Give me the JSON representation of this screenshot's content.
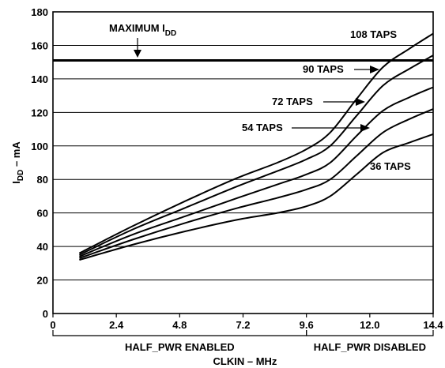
{
  "chart_data": {
    "type": "line",
    "xlabel": "CLKIN – MHz",
    "ylabel_main": "I",
    "ylabel_sub": "DD",
    "ylabel_tail": " – mA",
    "xlim": [
      0,
      14.4
    ],
    "ylim": [
      0,
      180
    ],
    "x_ticks": [
      "0",
      "2.4",
      "4.8",
      "7.2",
      "9.6",
      "12.0",
      "14.4"
    ],
    "x_tick_values": [
      0,
      2.4,
      4.8,
      7.2,
      9.6,
      12.0,
      14.4
    ],
    "y_ticks": [
      "0",
      "20",
      "40",
      "60",
      "80",
      "100",
      "120",
      "140",
      "160",
      "180"
    ],
    "y_tick_values": [
      0,
      20,
      40,
      60,
      80,
      100,
      120,
      140,
      160,
      180
    ],
    "grid": "horizontal",
    "max_line": {
      "value": 151,
      "label_main": "MAXIMUM I",
      "label_sub": "DD"
    },
    "x_ranges": [
      {
        "label": "HALF_PWR ENABLED",
        "from": 0,
        "to": 9.6
      },
      {
        "label": "HALF_PWR DISABLED",
        "from": 9.6,
        "to": 14.4
      }
    ],
    "series": [
      {
        "name": "108 TAPS",
        "x": [
          1,
          3,
          5,
          7,
          8.5,
          9.6,
          10.5,
          11.5,
          12.5,
          13.5,
          14.4
        ],
        "y": [
          36,
          52,
          67,
          81,
          90,
          98,
          108,
          128,
          147,
          158,
          167
        ]
      },
      {
        "name": "90 TAPS",
        "x": [
          1,
          3,
          5,
          7,
          8.5,
          9.6,
          10.5,
          11.5,
          12.5,
          13.5,
          14.4
        ],
        "y": [
          35,
          50,
          63,
          76,
          85,
          92,
          100,
          118,
          136,
          146,
          154
        ]
      },
      {
        "name": "72 TAPS",
        "x": [
          1,
          3,
          5,
          7,
          8.5,
          9.6,
          10.5,
          11.5,
          12.5,
          13.5,
          14.4
        ],
        "y": [
          34,
          47,
          58,
          69,
          77,
          83,
          90,
          106,
          121,
          129,
          135
        ]
      },
      {
        "name": "54 TAPS",
        "x": [
          1,
          3,
          5,
          7,
          8.5,
          9.6,
          10.5,
          11.5,
          12.5,
          13.5,
          14.4
        ],
        "y": [
          33,
          44,
          54,
          63,
          69,
          74,
          80,
          94,
          108,
          116,
          122
        ]
      },
      {
        "name": "36 TAPS",
        "x": [
          1,
          3,
          5,
          7,
          8.5,
          9.6,
          10.5,
          11.5,
          12.5,
          13.5,
          14.4
        ],
        "y": [
          32,
          41,
          49,
          56,
          60,
          64,
          70,
          83,
          96,
          102,
          107
        ]
      }
    ]
  }
}
